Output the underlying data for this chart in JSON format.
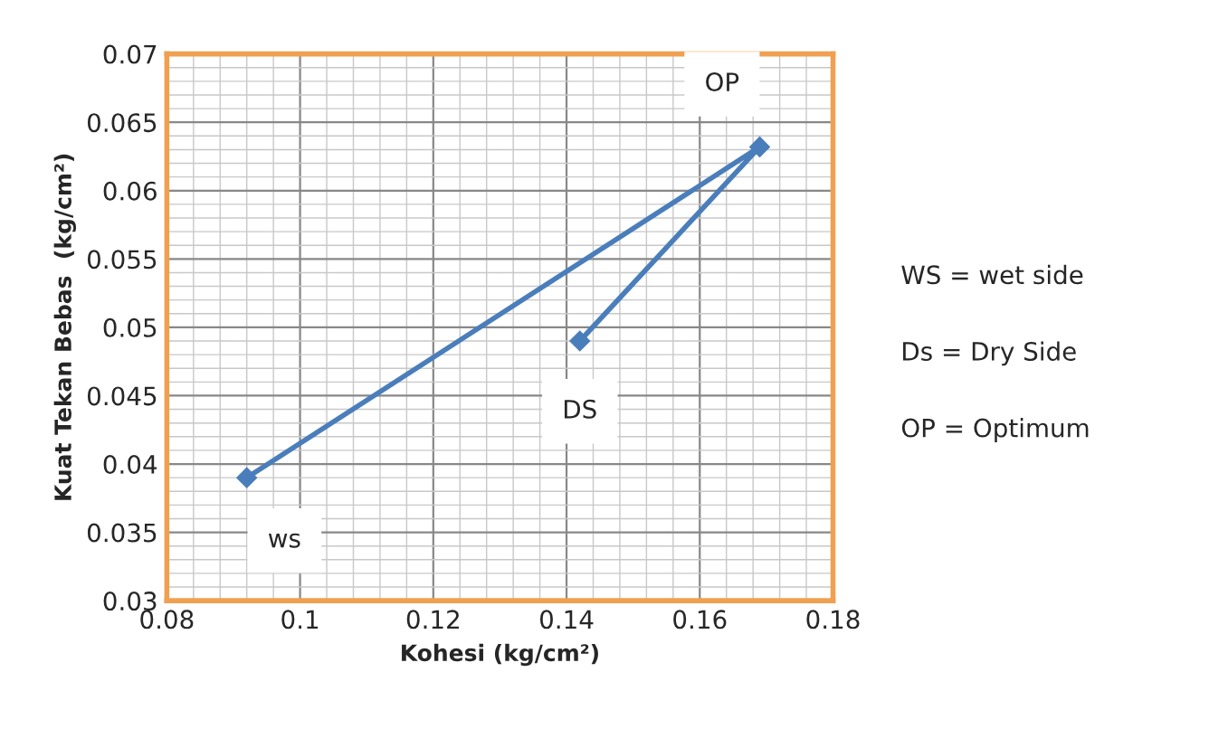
{
  "chart_data": {
    "type": "line",
    "xlabel": "Kohesi (kg/cm²)",
    "ylabel": "Kuat Tekan Bebas  (kg/cm²)",
    "x": [
      0.092,
      0.169,
      0.142
    ],
    "series": [
      {
        "color": "#4a7ebb",
        "values": [
          0.039,
          0.0632,
          0.049
        ]
      }
    ],
    "xlim": [
      0.08,
      0.18
    ],
    "xticks": [
      0.08,
      0.1,
      0.12,
      0.14,
      0.16,
      0.18
    ],
    "ylim": [
      0.03,
      0.07
    ],
    "yticks": [
      0.03,
      0.035,
      0.04,
      0.045,
      0.05,
      0.055,
      0.06,
      0.065,
      0.07
    ],
    "grid": true,
    "marker": "diamond",
    "line_style": "solid",
    "legend": false,
    "annotations": [
      {
        "text": "ws",
        "x": 0.092,
        "y": 0.039
      },
      {
        "text": "OP",
        "x": 0.169,
        "y": 0.0632
      },
      {
        "text": "DS",
        "x": 0.142,
        "y": 0.049
      },
      "WS = wet side",
      "Ds = Dry Side",
      "OP = Optimum"
    ]
  }
}
